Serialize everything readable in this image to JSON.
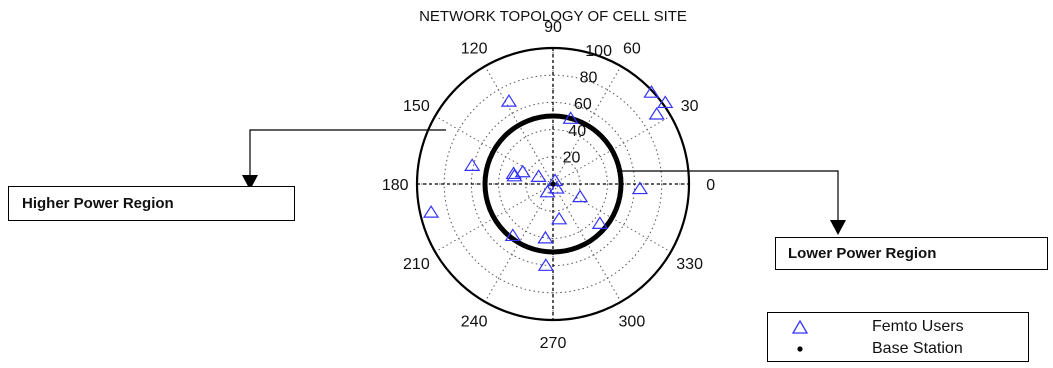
{
  "chart_data": {
    "type": "scatter",
    "projection": "polar",
    "title": "NETWORK TOPOLOGY OF CELL SITE",
    "r_max": 100,
    "radial_ticks": [
      20,
      40,
      60,
      80,
      100
    ],
    "angle_ticks": [
      0,
      30,
      60,
      90,
      120,
      150,
      180,
      210,
      240,
      270,
      300,
      330
    ],
    "grid": true,
    "boundary_circle_r": 50,
    "series": [
      {
        "name": "Femto Users",
        "marker": "triangle",
        "color": "#3333ff",
        "points": [
          {
            "theta": 43,
            "r": 99
          },
          {
            "theta": 36,
            "r": 102
          },
          {
            "theta": 34,
            "r": 92
          },
          {
            "theta": 75,
            "r": 50
          },
          {
            "theta": 118,
            "r": 69
          },
          {
            "theta": 167,
            "r": 61
          },
          {
            "theta": 165,
            "r": 30
          },
          {
            "theta": 158,
            "r": 24
          },
          {
            "theta": 152,
            "r": 12
          },
          {
            "theta": 168,
            "r": 29
          },
          {
            "theta": 60,
            "r": 3
          },
          {
            "theta": 235,
            "r": 7
          },
          {
            "theta": 312,
            "r": 4
          },
          {
            "theta": 335,
            "r": 22
          },
          {
            "theta": 357,
            "r": 64
          },
          {
            "theta": 232,
            "r": 48
          },
          {
            "theta": 280,
            "r": 26
          },
          {
            "theta": 320,
            "r": 45
          },
          {
            "theta": 262,
            "r": 40
          },
          {
            "theta": 193,
            "r": 92
          },
          {
            "theta": 265,
            "r": 60
          }
        ]
      },
      {
        "name": "Base Station",
        "marker": "dot",
        "color": "#000000",
        "points": [
          {
            "theta": 0,
            "r": 0
          }
        ]
      }
    ],
    "annotations": [
      {
        "label": "Higher Power Region",
        "side": "left"
      },
      {
        "label": "Lower Power Region",
        "side": "right"
      }
    ],
    "legend_position": "bottom-right"
  }
}
